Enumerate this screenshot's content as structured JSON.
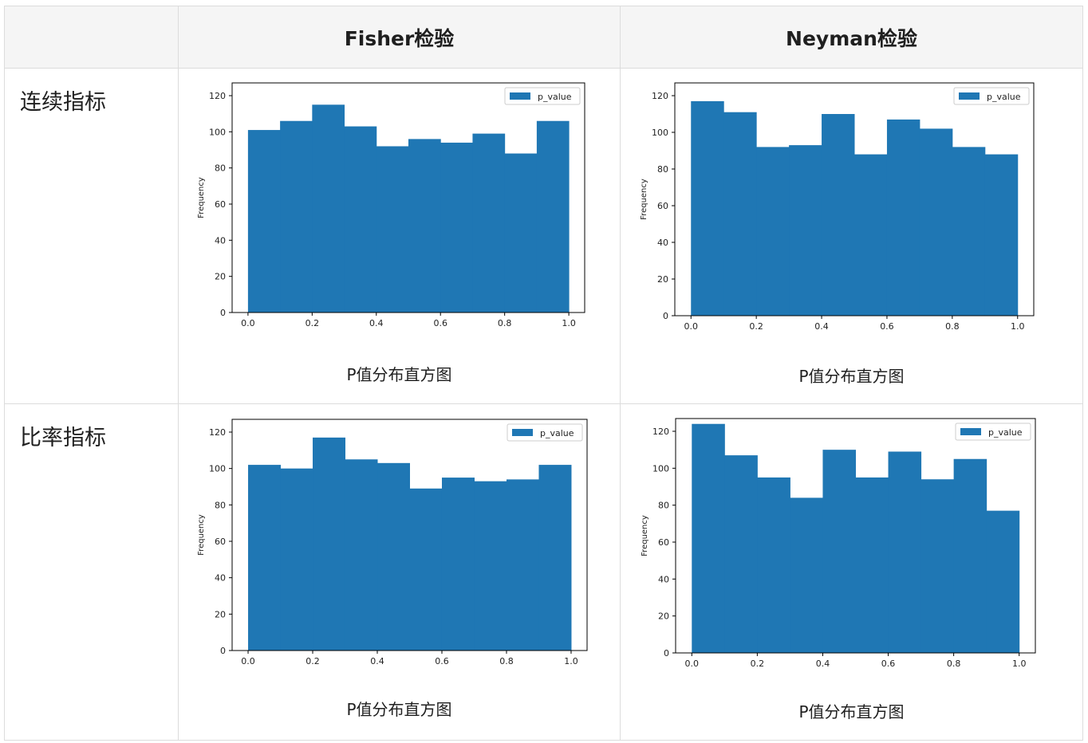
{
  "table": {
    "corner": "",
    "col_headers": [
      "Fisher检验",
      "Neyman检验"
    ],
    "row_headers": [
      "连续指标",
      "比率指标"
    ]
  },
  "chart_data": [
    {
      "type": "bar",
      "ylabel": "Frequency",
      "legend": "p_value",
      "legend_position": "top-right",
      "ylim": [
        0,
        120
      ],
      "xlim": [
        0.0,
        1.0
      ],
      "bin_edges": [
        0.0,
        0.1,
        0.2,
        0.3,
        0.4,
        0.5,
        0.6,
        0.7,
        0.8,
        0.9,
        1.0
      ],
      "values": [
        101,
        106,
        115,
        103,
        92,
        96,
        94,
        99,
        88,
        106
      ],
      "caption": "P值分布直方图",
      "color": "#1f77b4"
    },
    {
      "type": "bar",
      "ylabel": "Frequency",
      "legend": "p_value",
      "legend_position": "top-right",
      "ylim": [
        0,
        120
      ],
      "xlim": [
        0.0,
        1.0
      ],
      "bin_edges": [
        0.0,
        0.1,
        0.2,
        0.3,
        0.4,
        0.5,
        0.6,
        0.7,
        0.8,
        0.9,
        1.0
      ],
      "values": [
        117,
        111,
        92,
        93,
        110,
        88,
        107,
        102,
        92,
        88
      ],
      "caption": "P值分布直方图",
      "color": "#1f77b4"
    },
    {
      "type": "bar",
      "ylabel": "Frequency",
      "legend": "p_value",
      "legend_position": "top-right",
      "ylim": [
        0,
        120
      ],
      "xlim": [
        0.0,
        1.0
      ],
      "bin_edges": [
        0.0,
        0.1,
        0.2,
        0.3,
        0.4,
        0.5,
        0.6,
        0.7,
        0.8,
        0.9,
        1.0
      ],
      "values": [
        102,
        100,
        117,
        105,
        103,
        89,
        95,
        93,
        94,
        102
      ],
      "caption": "P值分布直方图",
      "color": "#1f77b4"
    },
    {
      "type": "bar",
      "ylabel": "Frequency",
      "legend": "p_value",
      "legend_position": "top-right",
      "ylim": [
        0,
        120
      ],
      "xlim": [
        0.0,
        1.0
      ],
      "bin_edges": [
        0.0,
        0.1,
        0.2,
        0.3,
        0.4,
        0.5,
        0.6,
        0.7,
        0.8,
        0.9,
        1.0
      ],
      "values": [
        124,
        107,
        95,
        84,
        110,
        95,
        109,
        94,
        105,
        77
      ],
      "caption": "P值分布直方图",
      "color": "#1f77b4"
    }
  ]
}
